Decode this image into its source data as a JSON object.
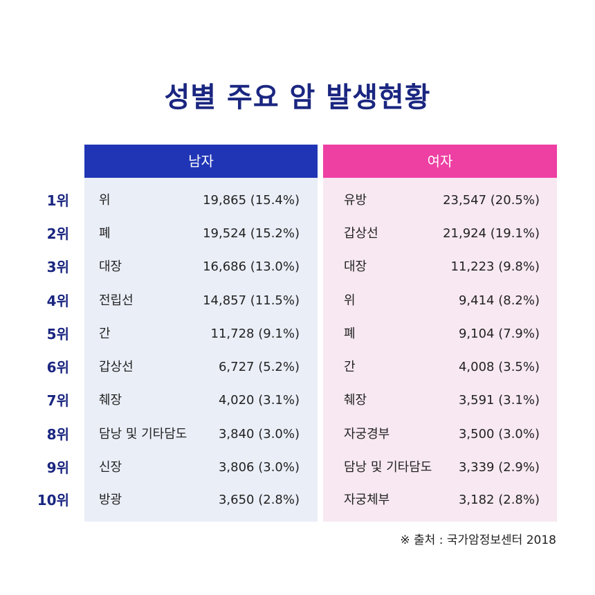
{
  "title": "성별 주요 암 발생현황",
  "headers": {
    "male": "남자",
    "female": "여자"
  },
  "rows": [
    {
      "rank": "1위",
      "male": {
        "name": "위",
        "value": "19,865 (15.4%)"
      },
      "female": {
        "name": "유방",
        "value": "23,547 (20.5%)"
      }
    },
    {
      "rank": "2위",
      "male": {
        "name": "폐",
        "value": "19,524 (15.2%)"
      },
      "female": {
        "name": "갑상선",
        "value": "21,924 (19.1%)"
      }
    },
    {
      "rank": "3위",
      "male": {
        "name": "대장",
        "value": "16,686 (13.0%)"
      },
      "female": {
        "name": "대장",
        "value": "11,223 (9.8%)"
      }
    },
    {
      "rank": "4위",
      "male": {
        "name": "전립선",
        "value": "14,857 (11.5%)"
      },
      "female": {
        "name": "위",
        "value": "9,414 (8.2%)"
      }
    },
    {
      "rank": "5위",
      "male": {
        "name": "간",
        "value": "11,728 (9.1%)"
      },
      "female": {
        "name": "폐",
        "value": "9,104 (7.9%)"
      }
    },
    {
      "rank": "6위",
      "male": {
        "name": "갑상선",
        "value": "6,727 (5.2%)"
      },
      "female": {
        "name": "간",
        "value": "4,008 (3.5%)"
      }
    },
    {
      "rank": "7위",
      "male": {
        "name": "췌장",
        "value": "4,020 (3.1%)"
      },
      "female": {
        "name": "췌장",
        "value": "3,591 (3.1%)"
      }
    },
    {
      "rank": "8위",
      "male": {
        "name": "담낭 및 기타담도",
        "value": "3,840 (3.0%)"
      },
      "female": {
        "name": "자궁경부",
        "value": "3,500 (3.0%)"
      }
    },
    {
      "rank": "9위",
      "male": {
        "name": "신장",
        "value": "3,806 (3.0%)"
      },
      "female": {
        "name": "담낭 및 기타담도",
        "value": "3,339 (2.9%)"
      }
    },
    {
      "rank": "10위",
      "male": {
        "name": "방광",
        "value": "3,650 (2.8%)"
      },
      "female": {
        "name": "자궁체부",
        "value": "3,182 (2.8%)"
      }
    }
  ],
  "source": "※ 출처 : 국가암정보센터 2018",
  "colors": {
    "title": "#1a2680",
    "male_header": "#2035b5",
    "female_header": "#ee3fa3",
    "male_panel": "#eaeef7",
    "female_panel": "#f7e8f1"
  }
}
